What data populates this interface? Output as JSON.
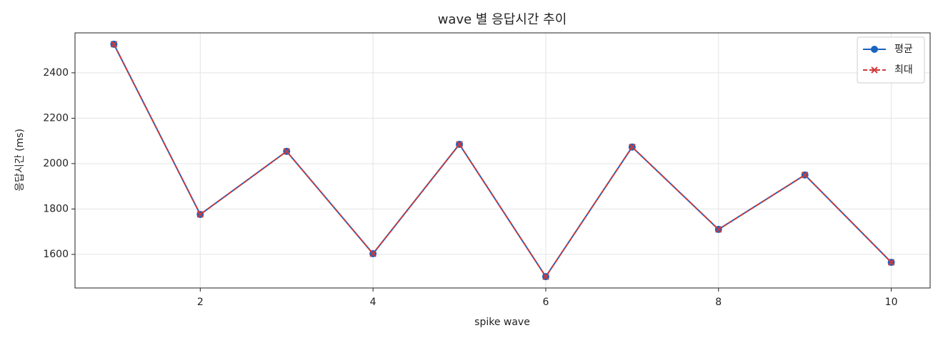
{
  "chart_data": {
    "type": "line",
    "title": "wave 별 응답시간 추이",
    "xlabel": "spike wave",
    "ylabel": "응답시간 (ms)",
    "x": [
      1,
      2,
      3,
      4,
      5,
      6,
      7,
      8,
      9,
      10
    ],
    "series": [
      {
        "name": "평균",
        "color": "#1a64c0",
        "linestyle": "solid",
        "marker": "o",
        "values": [
          2526,
          1776,
          2054,
          1603,
          2085,
          1502,
          2073,
          1710,
          1950,
          1565
        ]
      },
      {
        "name": "최대",
        "color": "#d03a3a",
        "linestyle": "dashed",
        "marker": "x",
        "values": [
          2526,
          1776,
          2054,
          1603,
          2085,
          1502,
          2073,
          1710,
          1950,
          1565
        ]
      }
    ],
    "xlim": [
      0.55,
      10.45
    ],
    "ylim": [
      1452,
      2576
    ],
    "xticks": [
      2,
      4,
      6,
      8,
      10
    ],
    "yticks": [
      1600,
      1800,
      2000,
      2200,
      2400
    ],
    "grid": true,
    "legend": "upper right"
  }
}
